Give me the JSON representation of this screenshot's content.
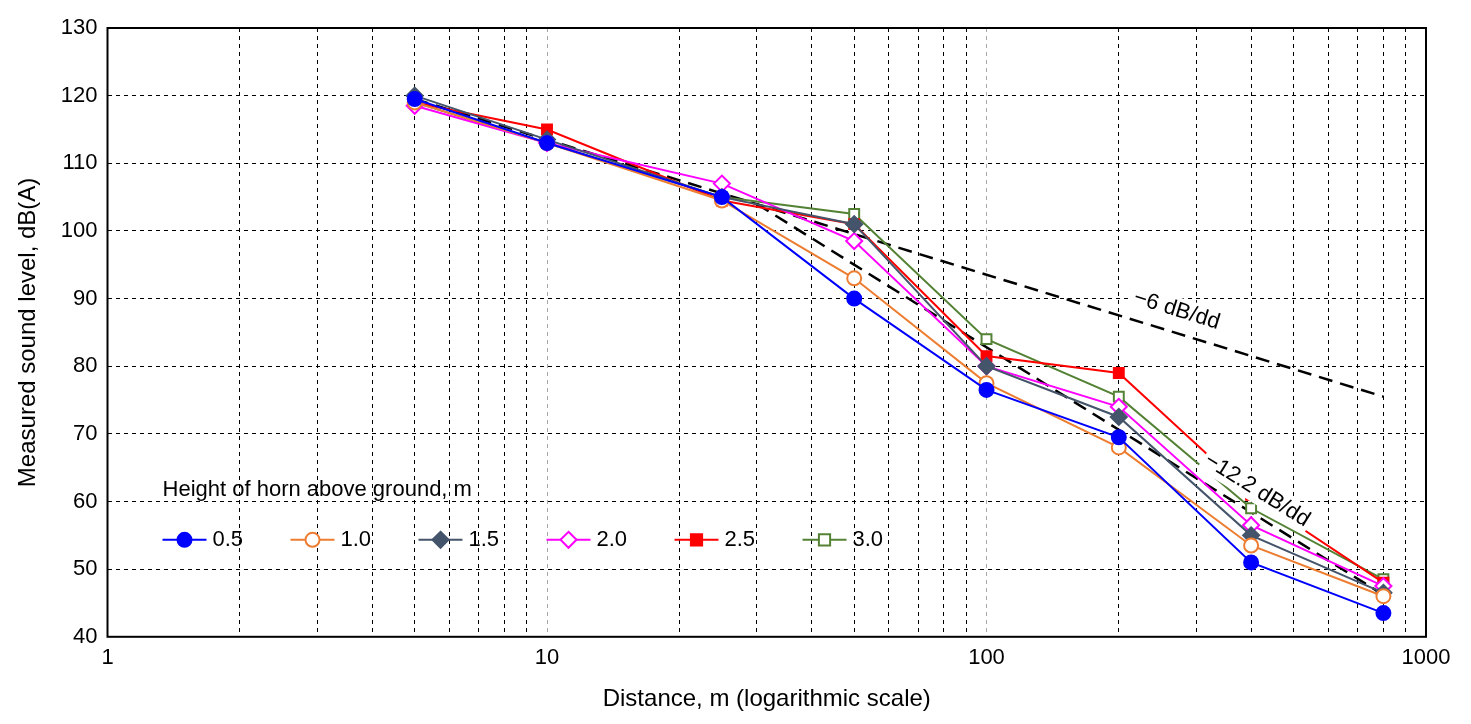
{
  "chart_data": {
    "type": "line",
    "x_label": "Distance, m (logarithmic scale)",
    "y_label": "Measured sound level, dB(A)",
    "log": "x",
    "grid": true,
    "legend": "lower left",
    "legend_title": "Height of horn above ground, m",
    "xlim": [
      1,
      1000
    ],
    "xticks": [
      1,
      10,
      100,
      1000
    ],
    "ylim": [
      40,
      130
    ],
    "yticks": [
      40,
      50,
      60,
      70,
      80,
      90,
      100,
      110,
      120,
      130
    ],
    "x": [
      5,
      10,
      25,
      50,
      100,
      200,
      400,
      800
    ],
    "series": [
      {
        "name": "0.5",
        "color": "#0000ff",
        "marker": "circle",
        "values": [
          119.5,
          113,
          105,
          90,
          76.5,
          69.5,
          51,
          43.5
        ]
      },
      {
        "name": "1.0",
        "color": "#ed7d31",
        "marker": "circle-open",
        "values": [
          119,
          113,
          104.5,
          93,
          77.5,
          68,
          53.5,
          46
        ]
      },
      {
        "name": "1.5",
        "color": "#44546a",
        "marker": "diamond",
        "values": [
          120,
          113.5,
          105,
          101,
          80,
          72.5,
          55,
          46.5
        ]
      },
      {
        "name": "2.0",
        "color": "#ff00ff",
        "marker": "diamond-open",
        "values": [
          118.5,
          113,
          107,
          98.5,
          80,
          74,
          56.5,
          47.5
        ]
      },
      {
        "name": "2.5",
        "color": "#ff0000",
        "marker": "square",
        "values": [
          119,
          115,
          104.5,
          101,
          81.5,
          79,
          61,
          48
        ]
      },
      {
        "name": "3.0",
        "color": "#548235",
        "marker": "square-open",
        "values": [
          119,
          113,
          105,
          102.5,
          84,
          75.5,
          59,
          48.5
        ]
      }
    ],
    "annotations": [
      {
        "text": "−6 dB/dd",
        "x": [
          5,
          800
        ],
        "y": [
          119.5,
          75.5
        ],
        "color": "#000000",
        "line_style": "dashed"
      },
      {
        "text": "−12.2 dB/dd",
        "x": [
          30,
          800
        ],
        "y": [
          104,
          46.2
        ],
        "color": "#000000",
        "line_style": "dashed"
      }
    ]
  }
}
